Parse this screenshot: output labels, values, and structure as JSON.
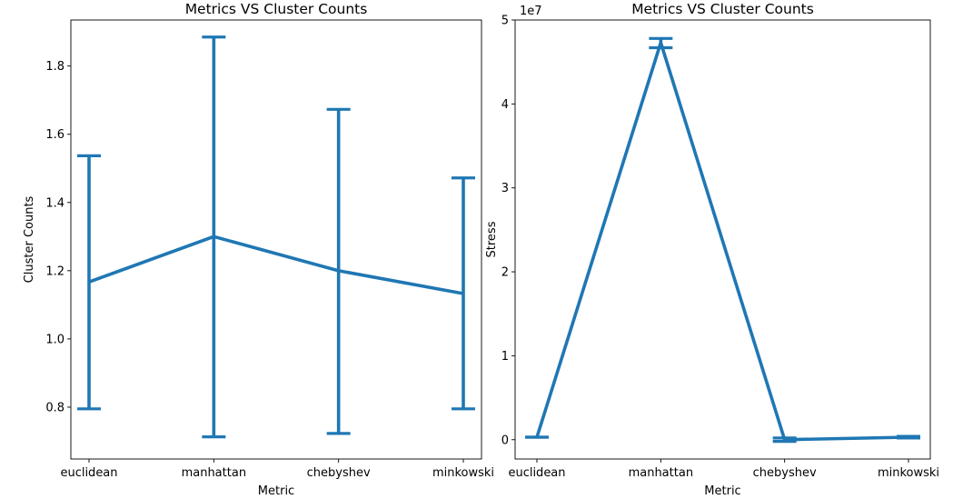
{
  "colors": {
    "series": "#1f77b4",
    "axis": "#000000",
    "background": "#ffffff"
  },
  "chart_data": [
    {
      "type": "line",
      "title": "Metrics VS Cluster Counts",
      "xlabel": "Metric",
      "ylabel": "Cluster Counts",
      "categories": [
        "euclidean",
        "manhattan",
        "chebyshev",
        "minkowski"
      ],
      "values": [
        1.167,
        1.3,
        1.2,
        1.133
      ],
      "error_low": [
        0.795,
        0.713,
        0.723,
        0.795
      ],
      "error_high": [
        1.537,
        1.885,
        1.673,
        1.472
      ],
      "ylim": [
        0.648,
        1.935
      ],
      "yticks": [
        0.8,
        1.0,
        1.2,
        1.4,
        1.6,
        1.8
      ],
      "ytick_labels": [
        "0.8",
        "1.0",
        "1.2",
        "1.4",
        "1.6",
        "1.8"
      ],
      "grid": false
    },
    {
      "type": "line",
      "title": "Metrics VS Cluster Counts",
      "xlabel": "Metric",
      "ylabel": "Stress",
      "offset_label": "1e7",
      "categories": [
        "euclidean",
        "manhattan",
        "chebyshev",
        "minkowski"
      ],
      "values": [
        0.03,
        4.73,
        0.0,
        0.03
      ],
      "error_low": [
        0.03,
        4.67,
        -0.02,
        0.02
      ],
      "error_high": [
        0.03,
        4.78,
        0.02,
        0.04
      ],
      "ylim": [
        -0.23,
        5.0
      ],
      "yticks": [
        0,
        1,
        2,
        3,
        4,
        5
      ],
      "ytick_labels": [
        "0",
        "1",
        "2",
        "3",
        "4",
        "5"
      ],
      "grid": false
    }
  ]
}
